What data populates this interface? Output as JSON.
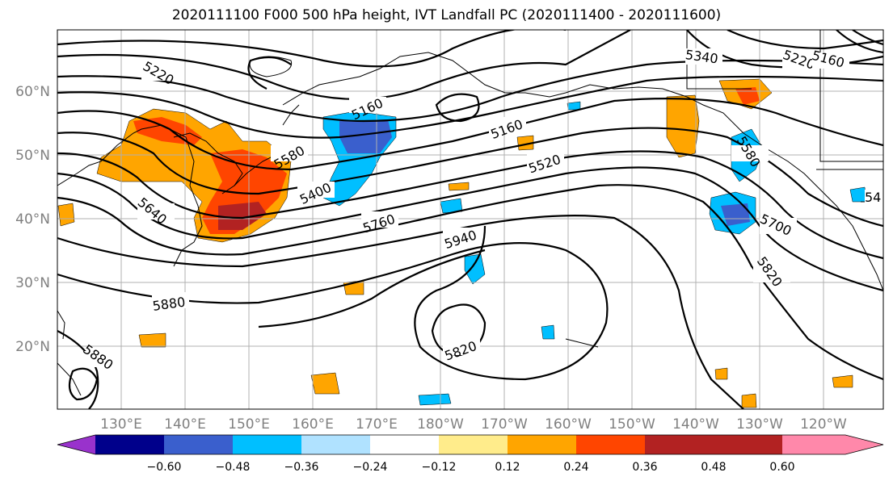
{
  "title": "2020111100 F000 500 hPa height, IVT Landfall PC (2020111400 - 2020111600)",
  "lat_labels": [
    "60°N",
    "50°N",
    "40°N",
    "30°N",
    "20°N"
  ],
  "lon_labels": [
    "130°E",
    "140°E",
    "150°E",
    "160°E",
    "170°E",
    "180°W",
    "170°W",
    "160°W",
    "150°W",
    "140°W",
    "130°W",
    "120°W"
  ],
  "contour_labels": [
    "5220",
    "5160",
    "5340",
    "5220",
    "5160",
    "5160",
    "5580",
    "5400",
    "5520",
    "5640",
    "5760",
    "5940",
    "5580",
    "5700",
    "5820",
    "5880",
    "5880",
    "5820",
    "54"
  ],
  "colorbar": {
    "ticks": [
      "−0.60",
      "−0.48",
      "−0.36",
      "−0.24",
      "−0.12",
      "0.12",
      "0.24",
      "0.36",
      "0.48",
      "0.60"
    ],
    "colors": [
      "#9932cc",
      "#00008b",
      "#3a5fcd",
      "#00bfff",
      "#b0e2ff",
      "#ffffff",
      "#ffec8b",
      "#ffa500",
      "#ff4500",
      "#b22222",
      "#ff88aa"
    ]
  },
  "colors": {
    "positive_low": "#ffec8b",
    "positive_mid": "#ffa500",
    "positive_high": "#ff4500",
    "positive_max": "#b22222",
    "negative_low": "#00bfff",
    "negative_mid": "#3a5fcd",
    "grid": "#b0b0b0",
    "contour": "#000000"
  }
}
